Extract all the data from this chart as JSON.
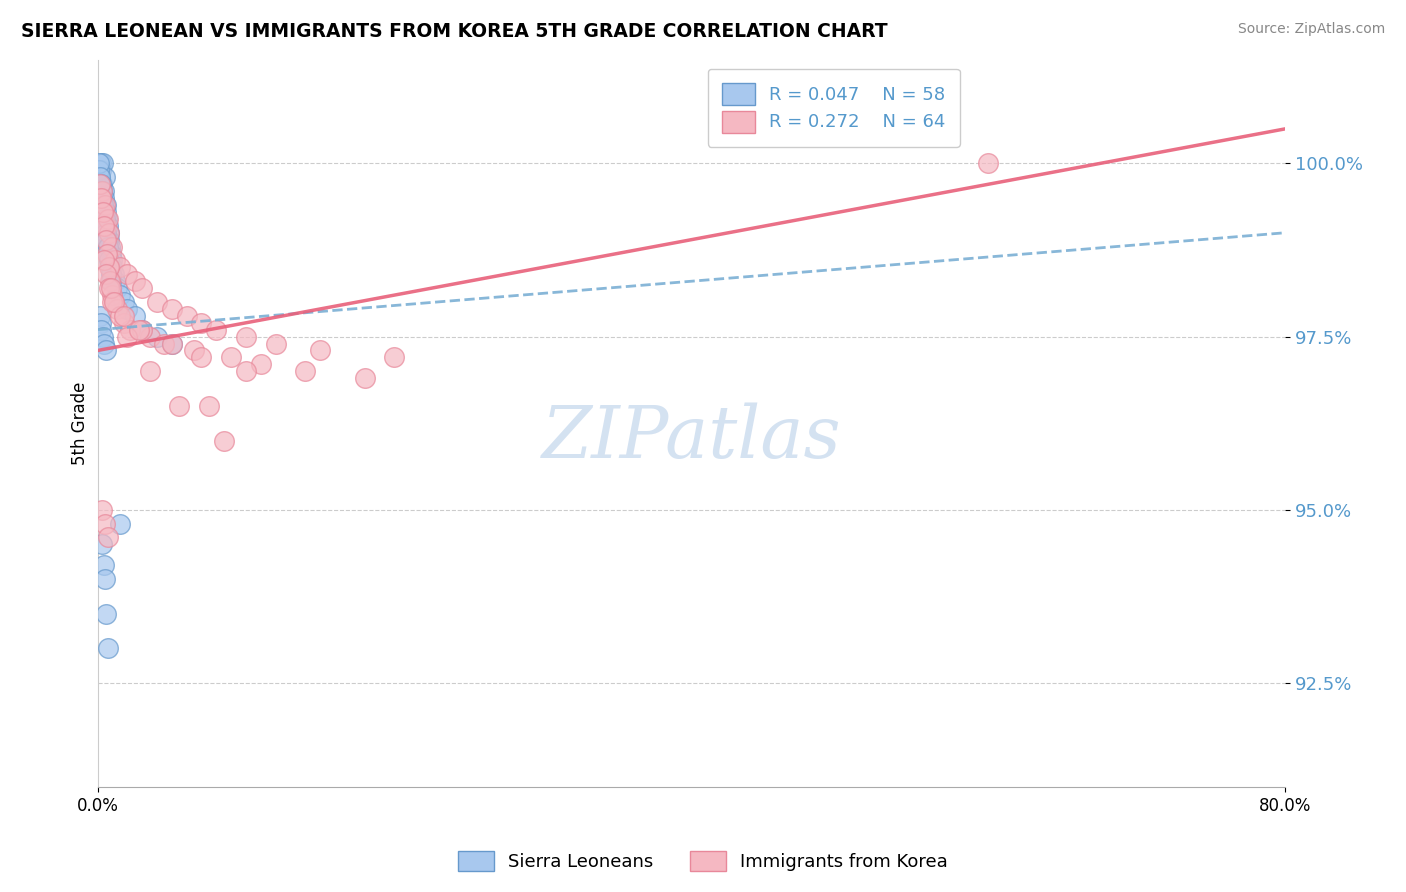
{
  "title": "SIERRA LEONEAN VS IMMIGRANTS FROM KOREA 5TH GRADE CORRELATION CHART",
  "source": "Source: ZipAtlas.com",
  "ylabel": "5th Grade",
  "legend_r_blue": "R = 0.047",
  "legend_n_blue": "N = 58",
  "legend_r_pink": "R = 0.272",
  "legend_n_pink": "N = 64",
  "legend_label_blue": "Sierra Leoneans",
  "legend_label_pink": "Immigrants from Korea",
  "blue_color": "#A8C8EE",
  "pink_color": "#F5B8C2",
  "blue_edge_color": "#6699CC",
  "pink_edge_color": "#E8889A",
  "blue_line_color": "#7BAFD4",
  "pink_line_color": "#E8607A",
  "background_color": "#FFFFFF",
  "grid_color": "#CCCCCC",
  "ytick_color": "#5599CC",
  "xlim": [
    0.0,
    80.0
  ],
  "ylim": [
    91.0,
    101.5
  ],
  "ytick_vals": [
    92.5,
    95.0,
    97.5,
    100.0
  ],
  "ytick_labels": [
    "92.5%",
    "95.0%",
    "97.5%",
    "100.0%"
  ],
  "sierra_x": [
    0.15,
    0.2,
    0.25,
    0.3,
    0.35,
    0.4,
    0.45,
    0.5,
    0.55,
    0.6,
    0.65,
    0.7,
    0.75,
    0.8,
    0.85,
    0.9,
    0.95,
    1.0,
    1.1,
    1.2,
    1.3,
    1.5,
    1.8,
    2.0,
    2.5,
    0.1,
    0.12,
    0.18,
    0.22,
    0.28,
    0.32,
    0.38,
    0.42,
    0.48,
    0.52,
    0.58,
    0.62,
    0.68,
    0.72,
    0.78,
    0.82,
    0.88,
    0.92,
    0.15,
    0.2,
    0.25,
    0.35,
    0.45,
    0.55,
    3.0,
    4.0,
    5.0,
    1.5,
    0.3,
    0.4,
    0.5,
    0.6,
    0.7
  ],
  "sierra_y": [
    99.8,
    100.0,
    99.9,
    99.7,
    100.0,
    99.6,
    99.5,
    99.8,
    99.4,
    99.3,
    99.2,
    99.1,
    99.0,
    98.9,
    98.8,
    98.7,
    98.6,
    98.5,
    98.4,
    98.3,
    98.2,
    98.1,
    98.0,
    97.9,
    97.8,
    99.9,
    100.0,
    99.8,
    99.7,
    99.6,
    99.5,
    99.4,
    99.3,
    99.2,
    99.1,
    99.0,
    98.9,
    98.8,
    98.7,
    98.6,
    98.5,
    98.4,
    98.3,
    97.8,
    97.7,
    97.6,
    97.5,
    97.4,
    97.3,
    97.6,
    97.5,
    97.4,
    94.8,
    94.5,
    94.2,
    94.0,
    93.5,
    93.0
  ],
  "korea_x": [
    0.2,
    0.3,
    0.4,
    0.5,
    0.6,
    0.7,
    0.8,
    1.0,
    1.2,
    1.5,
    2.0,
    2.5,
    3.0,
    4.0,
    5.0,
    6.0,
    7.0,
    8.0,
    10.0,
    12.0,
    15.0,
    20.0,
    0.15,
    0.25,
    0.35,
    0.45,
    0.55,
    0.65,
    0.75,
    0.85,
    0.95,
    1.1,
    1.3,
    1.8,
    2.2,
    3.5,
    4.5,
    6.5,
    9.0,
    11.0,
    14.0,
    18.0,
    0.4,
    0.6,
    0.8,
    1.0,
    1.5,
    3.0,
    5.0,
    7.0,
    10.0,
    0.3,
    0.5,
    0.7,
    7.5,
    0.9,
    1.1,
    2.0,
    3.5,
    5.5,
    8.5,
    60.0,
    1.8,
    2.8
  ],
  "korea_y": [
    99.5,
    99.6,
    99.3,
    99.4,
    99.1,
    99.2,
    99.0,
    98.8,
    98.6,
    98.5,
    98.4,
    98.3,
    98.2,
    98.0,
    97.9,
    97.8,
    97.7,
    97.6,
    97.5,
    97.4,
    97.3,
    97.2,
    99.7,
    99.5,
    99.3,
    99.1,
    98.9,
    98.7,
    98.5,
    98.3,
    98.1,
    98.0,
    97.9,
    97.7,
    97.6,
    97.5,
    97.4,
    97.3,
    97.2,
    97.1,
    97.0,
    96.9,
    98.6,
    98.4,
    98.2,
    98.0,
    97.8,
    97.6,
    97.4,
    97.2,
    97.0,
    95.0,
    94.8,
    94.6,
    96.5,
    98.2,
    98.0,
    97.5,
    97.0,
    96.5,
    96.0,
    100.0,
    97.8,
    97.6
  ],
  "watermark_text": "ZIPatlas",
  "watermark_color": "#D0DFF0",
  "watermark_fontsize": 52
}
